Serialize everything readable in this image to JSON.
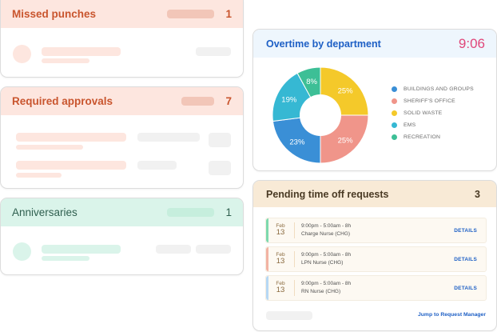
{
  "cards": {
    "missed_punches": {
      "title": "Missed punches",
      "count": "1",
      "accent": "#c9552e",
      "header_bg": "#fde6df"
    },
    "required_approvals": {
      "title": "Required approvals",
      "count": "7",
      "accent": "#c9552e",
      "header_bg": "#fde6df"
    },
    "anniversaries": {
      "title": "Anniversaries",
      "count": "1",
      "accent": "#2f5f4f",
      "header_bg": "#daf4ea"
    }
  },
  "overtime": {
    "title": "Overtime by department",
    "clock": "9:06"
  },
  "chart_data": {
    "type": "pie",
    "title": "Overtime by department",
    "donut": true,
    "legend_position": "right",
    "categories": [
      "Buildings and Groups",
      "Sheriff's Office",
      "Solid Waste",
      "EMS",
      "Recreation"
    ],
    "values": [
      23,
      25,
      25,
      19,
      8
    ],
    "labels": [
      "23%",
      "25%",
      "25%",
      "19%",
      "8%"
    ],
    "colors": [
      "#3a8fd6",
      "#f0958a",
      "#f4c92a",
      "#36b8d3",
      "#3dbf96"
    ]
  },
  "legend": [
    {
      "label": "BUILDINGS AND GROUPS",
      "color": "#3a8fd6"
    },
    {
      "label": "SHERIFF'S OFFICE",
      "color": "#f0958a"
    },
    {
      "label": "SOLID WASTE",
      "color": "#f4c92a"
    },
    {
      "label": "EMS",
      "color": "#36b8d3"
    },
    {
      "label": "RECREATION",
      "color": "#3dbf96"
    }
  ],
  "pending": {
    "title": "Pending time off requests",
    "count": "3",
    "requests": [
      {
        "month": "Feb",
        "day": "13",
        "time": "9:00pm - 5:00am - 8h",
        "role": "Charge Nurse (CHG)",
        "action": "DETAILS",
        "bar_color": "#7dd9ae"
      },
      {
        "month": "Feb",
        "day": "13",
        "time": "9:00pm - 5:00am - 8h",
        "role": "LPN Nurse (CHG)",
        "action": "DETAILS",
        "bar_color": "#f2b3a3"
      },
      {
        "month": "Feb",
        "day": "13",
        "time": "9:00pm - 5:00am - 8h",
        "role": "RN Nurse (CHG)",
        "action": "DETAILS",
        "bar_color": "#b6d8f5"
      }
    ],
    "jump_link": "Jump to Request Manager"
  }
}
